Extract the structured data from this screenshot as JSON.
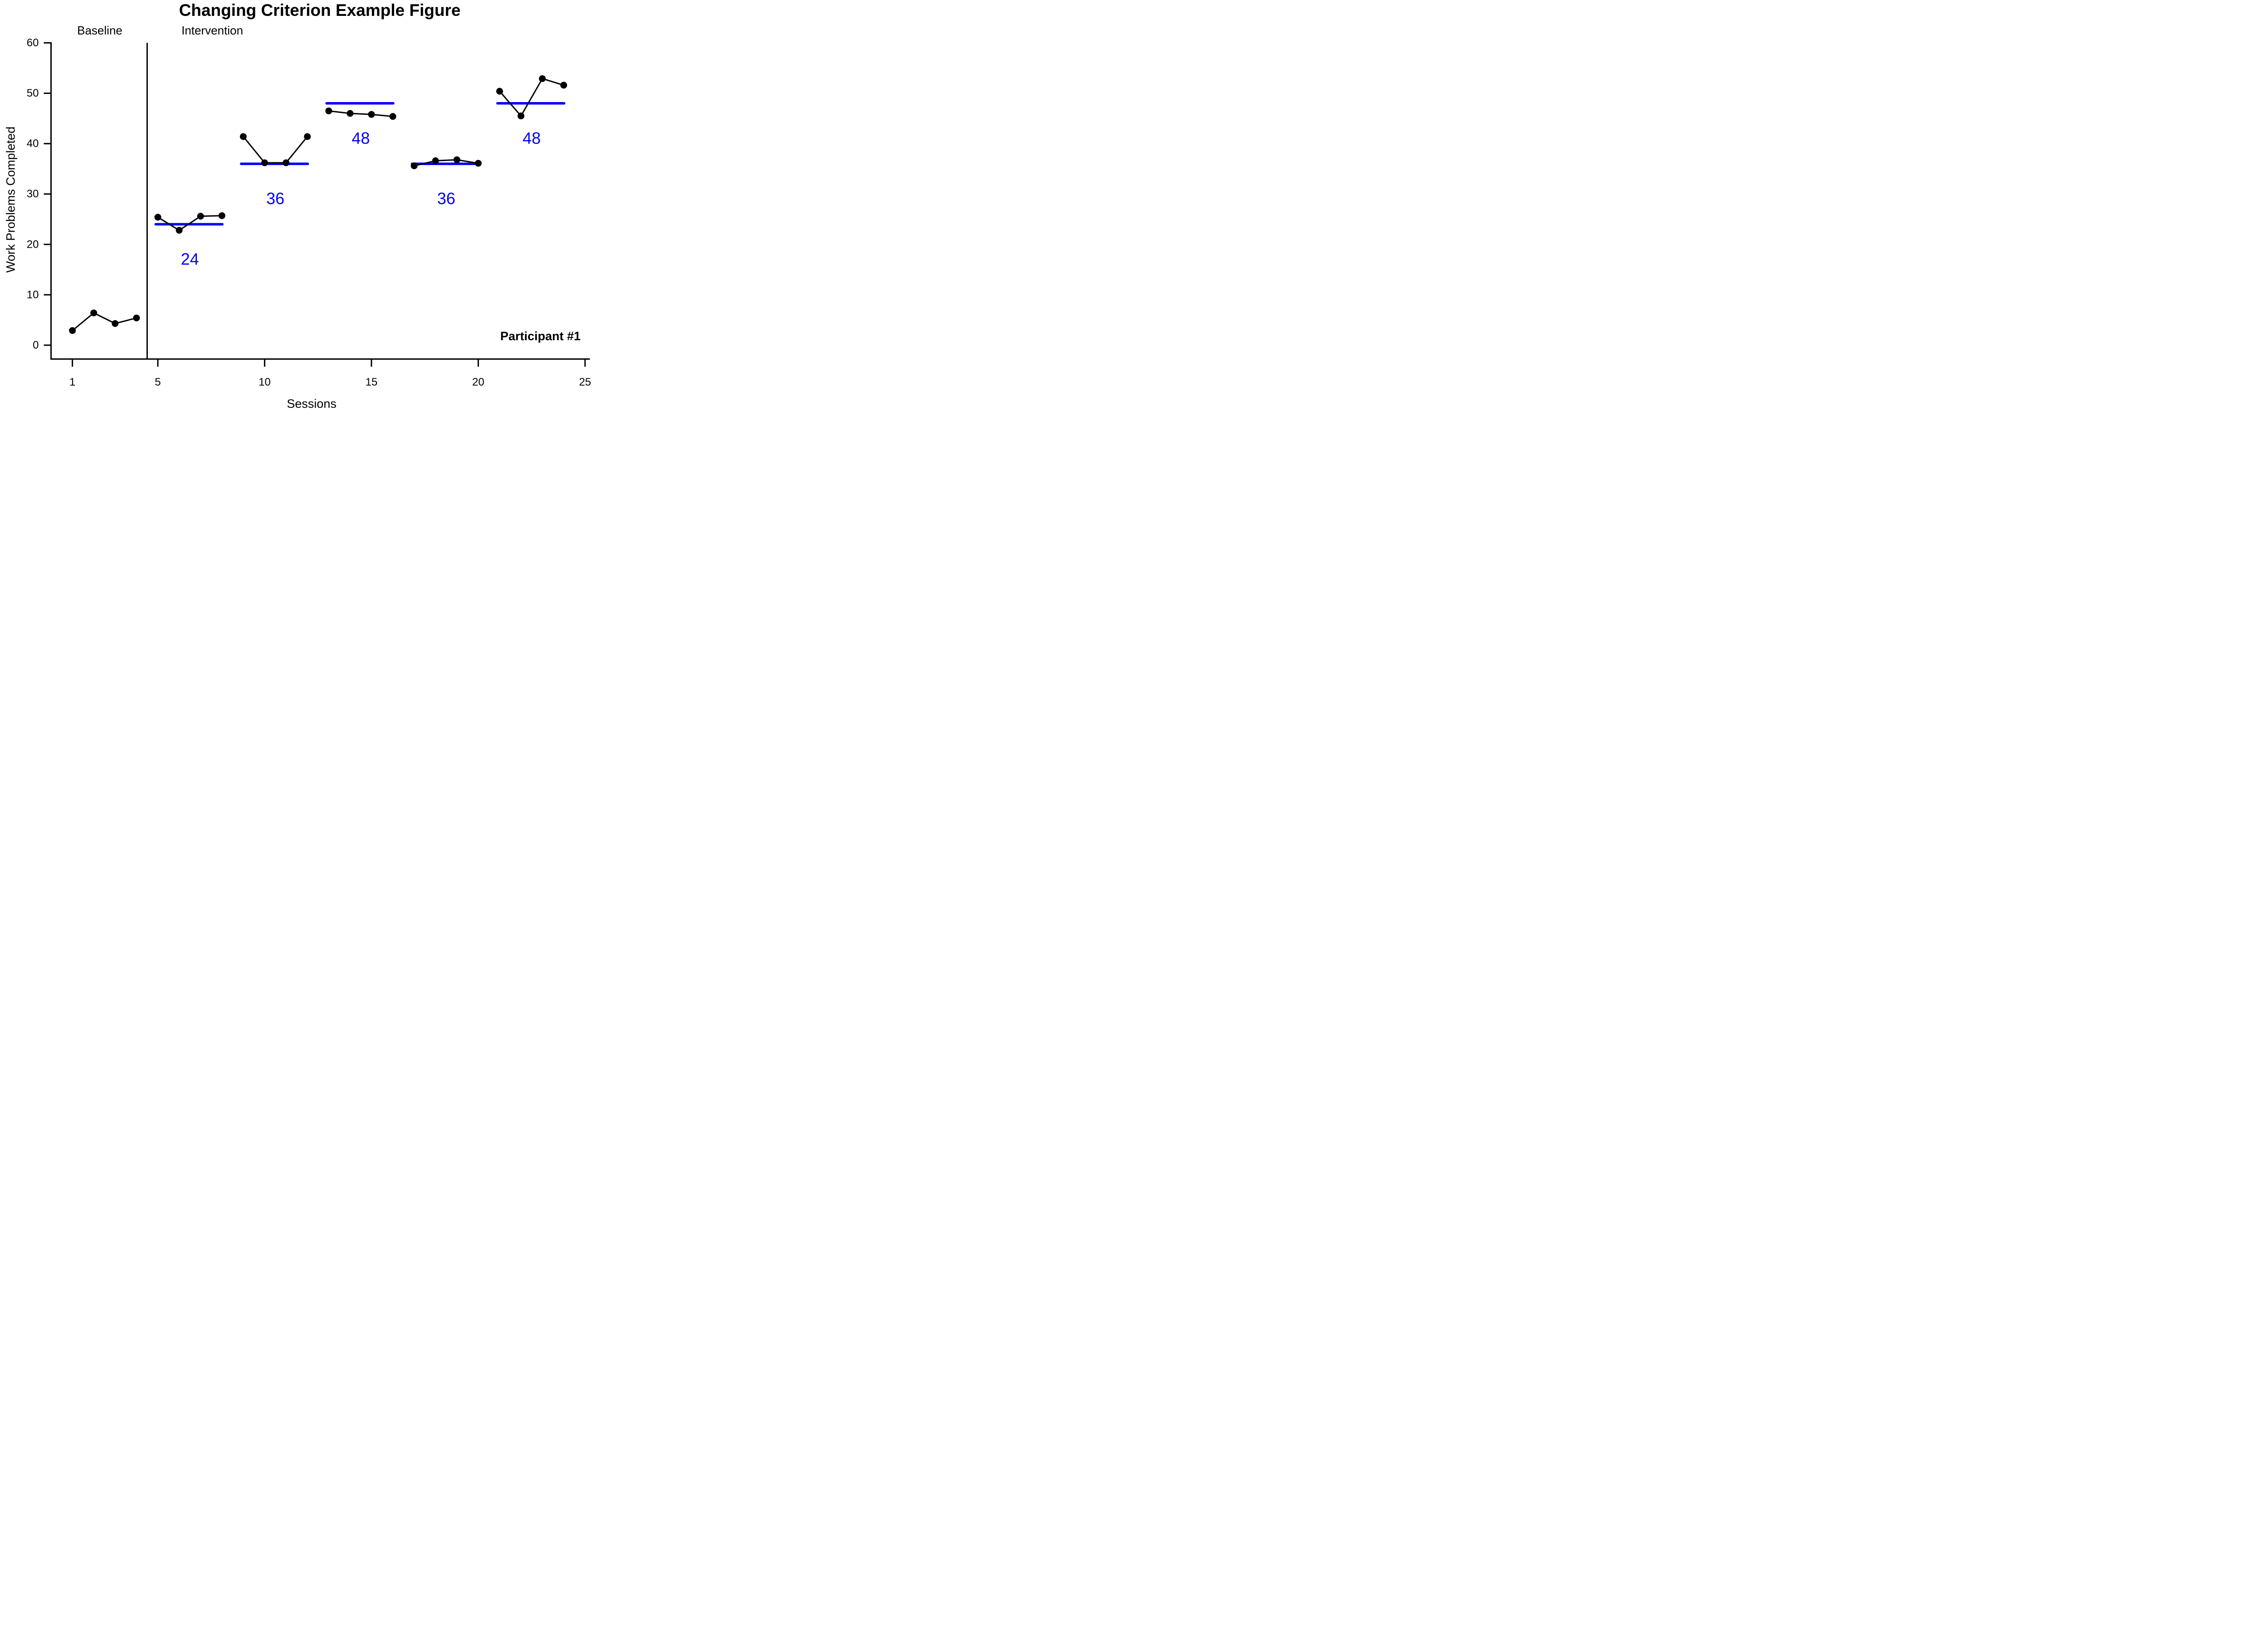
{
  "chart_data": {
    "type": "line",
    "title": "Changing Criterion Example Figure",
    "xlabel": "Sessions",
    "ylabel": "Work Problems Completed",
    "annotation": "Participant #1",
    "phase_section_labels": {
      "baseline": "Baseline",
      "intervention": "Intervention"
    },
    "x_ticks": [
      1,
      5,
      10,
      15,
      20,
      25
    ],
    "y_ticks": [
      0,
      10,
      20,
      30,
      40,
      50,
      60
    ],
    "xlim": [
      0,
      25.11
    ],
    "ylim": [
      -2.75,
      60
    ],
    "grid": false,
    "legend": false,
    "phase_change_x": 4.5,
    "colors": {
      "series": "#000000",
      "axis": "#000000",
      "criterion_line": "#0000FF",
      "criterion_label": "#0000FF",
      "background": "#FFFFFF"
    },
    "phases": [
      {
        "label": "Baseline",
        "criterion": null,
        "sessions": [
          1,
          2,
          3,
          4
        ],
        "values": [
          2.9,
          6.4,
          4.3,
          5.4
        ]
      },
      {
        "label": "Criterion 24",
        "criterion": 24,
        "sessions": [
          5,
          6,
          7,
          8
        ],
        "values": [
          25.4,
          22.8,
          25.6,
          25.7
        ]
      },
      {
        "label": "Criterion 36",
        "criterion": 36,
        "sessions": [
          9,
          10,
          11,
          12
        ],
        "values": [
          41.4,
          36.2,
          36.2,
          41.4
        ]
      },
      {
        "label": "Criterion 48",
        "criterion": 48,
        "sessions": [
          13,
          14,
          15,
          16
        ],
        "values": [
          46.5,
          46.0,
          45.8,
          45.4
        ]
      },
      {
        "label": "Criterion 36",
        "criterion": 36,
        "sessions": [
          17,
          18,
          19,
          20
        ],
        "values": [
          35.6,
          36.6,
          36.8,
          36.1
        ]
      },
      {
        "label": "Criterion 48",
        "criterion": 48,
        "sessions": [
          21,
          22,
          23,
          24
        ],
        "values": [
          50.4,
          45.5,
          52.9,
          51.6
        ]
      }
    ]
  }
}
